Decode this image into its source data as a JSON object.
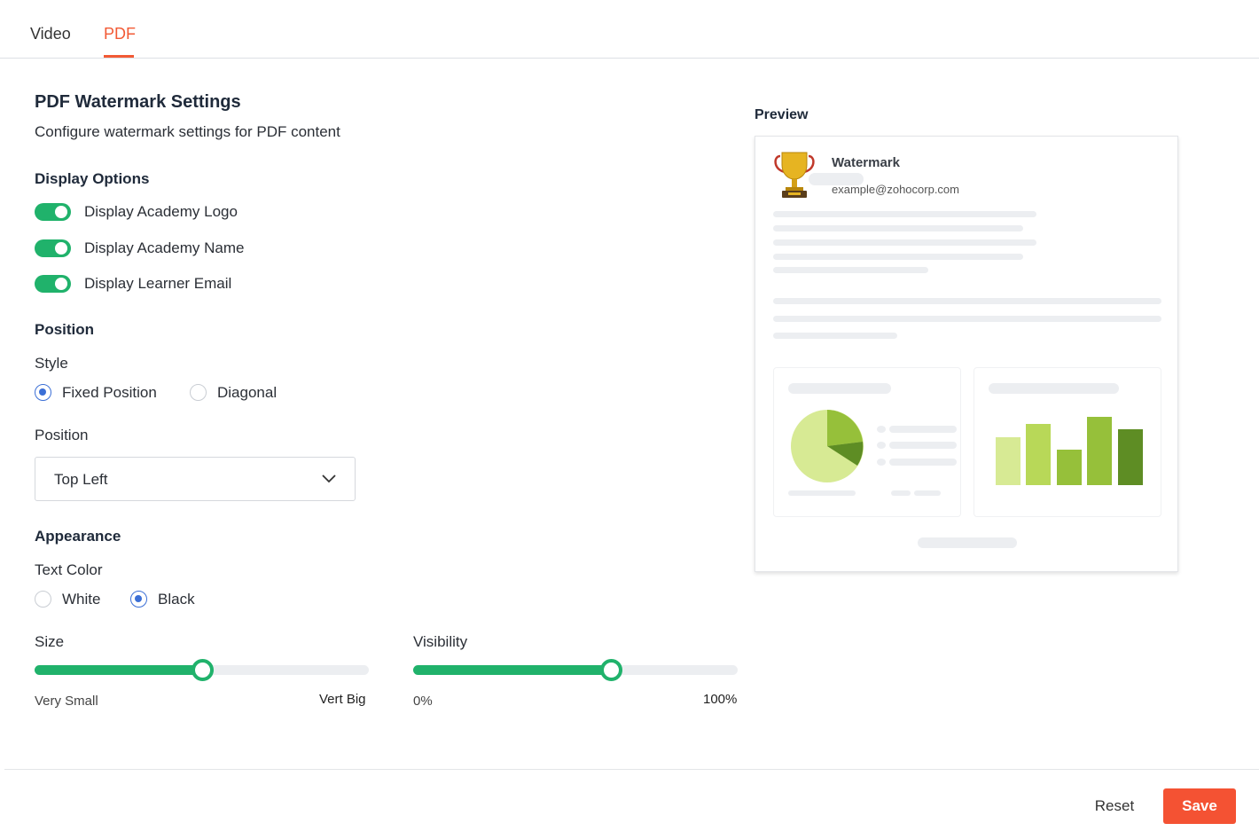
{
  "tabs": [
    {
      "label": "Video"
    },
    {
      "label": "PDF",
      "active": true
    }
  ],
  "header": {
    "title": "PDF Watermark Settings",
    "subtitle": "Configure watermark settings for PDF content"
  },
  "display_options": {
    "heading": "Display Options",
    "toggles": [
      {
        "label": "Display Academy Logo",
        "on": true
      },
      {
        "label": "Display Academy Name",
        "on": true
      },
      {
        "label": "Display Learner Email",
        "on": true
      }
    ]
  },
  "position": {
    "heading": "Position",
    "style_label": "Style",
    "style_options": [
      {
        "label": "Fixed Position",
        "selected": true
      },
      {
        "label": "Diagonal",
        "selected": false
      }
    ],
    "position_label": "Position",
    "position_value": "Top Left"
  },
  "appearance": {
    "heading": "Appearance",
    "text_color_label": "Text Color",
    "color_options": [
      {
        "label": "White",
        "selected": false
      },
      {
        "label": "Black",
        "selected": true
      }
    ],
    "size": {
      "label": "Size",
      "min_label": "Very Small",
      "max_label": "Vert Big",
      "value_fraction": 0.5
    },
    "visibility": {
      "label": "Visibility",
      "min_label": "0%",
      "max_label": "100%",
      "value_fraction": 0.61
    }
  },
  "preview": {
    "label": "Preview",
    "watermark_name": "Watermark",
    "watermark_email": "example@zohocorp.com"
  },
  "footer": {
    "reset_label": "Reset",
    "save_label": "Save"
  },
  "colors": {
    "accent": "#f25a35",
    "toggle_on": "#20b26b",
    "radio_selected": "#3b6fd6",
    "save_button": "#f45233"
  }
}
